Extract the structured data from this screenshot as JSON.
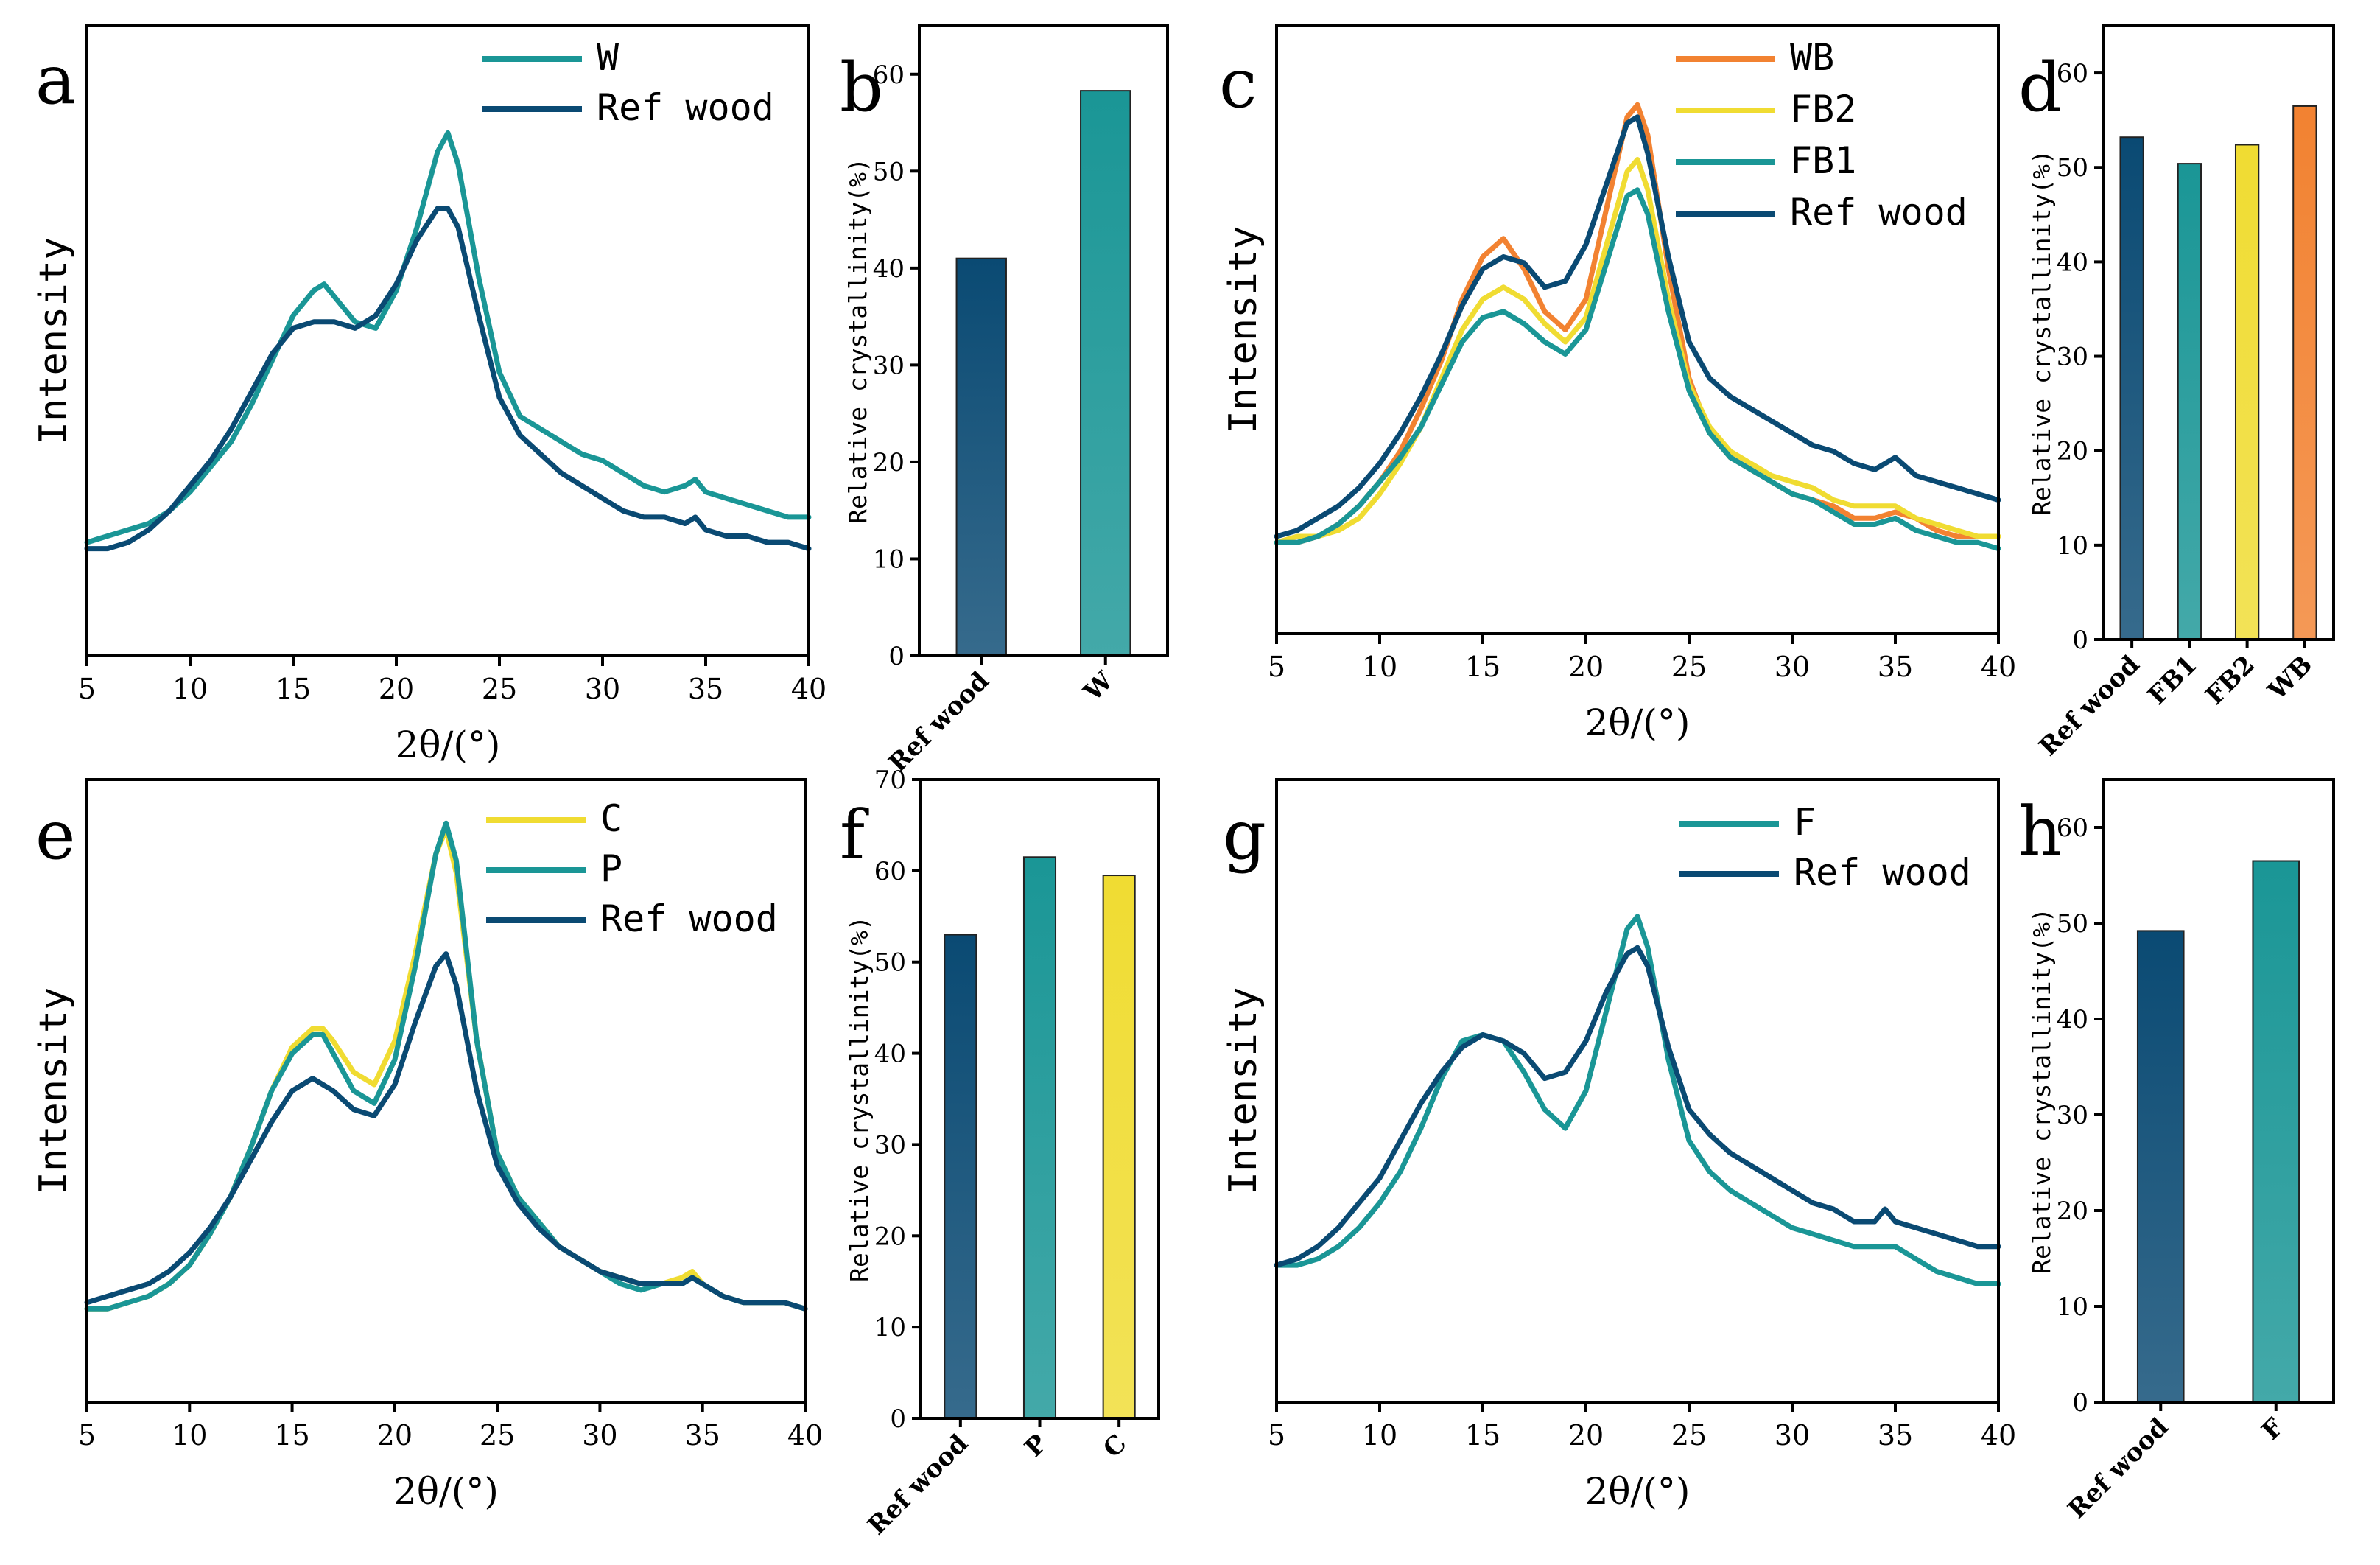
{
  "figure": {
    "background": "#ffffff"
  },
  "colors": {
    "ref": "#0a4a73",
    "W": "#1a9696",
    "F": "#1a9696",
    "P": "#1a9696",
    "FB1": "#1a9696",
    "FB2": "#f0dc32",
    "C": "#f0dc32",
    "WB": "#f28231"
  },
  "chart_data": [
    {
      "panel": "a",
      "type": "line",
      "xlabel": "2θ/(°)",
      "ylabel": "Intensity",
      "xlim": [
        5,
        40
      ],
      "ylim": [
        0,
        100
      ],
      "xticks": [
        5,
        10,
        15,
        20,
        25,
        30,
        35,
        40
      ],
      "series": [
        {
          "name": "W",
          "color": "#1a9696",
          "x": [
            5,
            6,
            7,
            8,
            9,
            10,
            11,
            12,
            13,
            14,
            15,
            16,
            16.5,
            17,
            18,
            19,
            20,
            21,
            22,
            22.5,
            23,
            24,
            25,
            26,
            27,
            28,
            29,
            30,
            31,
            32,
            33,
            34,
            34.5,
            35,
            36,
            37,
            38,
            39,
            40
          ],
          "y": [
            18,
            19,
            20,
            21,
            23,
            26,
            30,
            34,
            40,
            47,
            54,
            58,
            59,
            57,
            53,
            52,
            58,
            68,
            80,
            83,
            78,
            60,
            45,
            38,
            36,
            34,
            32,
            31,
            29,
            27,
            26,
            27,
            28,
            26,
            25,
            24,
            23,
            22,
            22
          ]
        },
        {
          "name": "Ref wood",
          "color": "#0a4a73",
          "x": [
            5,
            6,
            7,
            8,
            9,
            10,
            11,
            12,
            13,
            14,
            15,
            16,
            17,
            18,
            19,
            20,
            21,
            22,
            22.5,
            23,
            24,
            25,
            26,
            27,
            28,
            29,
            30,
            31,
            32,
            33,
            34,
            34.5,
            35,
            36,
            37,
            38,
            39,
            40
          ],
          "y": [
            17,
            17,
            18,
            20,
            23,
            27,
            31,
            36,
            42,
            48,
            52,
            53,
            53,
            52,
            54,
            59,
            66,
            71,
            71,
            68,
            54,
            41,
            35,
            32,
            29,
            27,
            25,
            23,
            22,
            22,
            21,
            22,
            20,
            19,
            19,
            18,
            18,
            17
          ]
        }
      ]
    },
    {
      "panel": "b",
      "type": "bar",
      "ylabel": "Relative crystallinity(%)",
      "ylim": [
        0,
        65
      ],
      "yticks": [
        0,
        10,
        20,
        30,
        40,
        50,
        60
      ],
      "categories": [
        "Ref wood",
        "W"
      ],
      "values": [
        41,
        58.3
      ],
      "colors": [
        "#0a4a73",
        "#1a9696"
      ]
    },
    {
      "panel": "c",
      "type": "line",
      "xlabel": "2θ/(°)",
      "ylabel": "Intensity",
      "xlim": [
        5,
        40
      ],
      "ylim": [
        0,
        100
      ],
      "xticks": [
        5,
        10,
        15,
        20,
        25,
        30,
        35,
        40
      ],
      "series": [
        {
          "name": "WB",
          "color": "#f28231",
          "x": [
            5,
            6,
            7,
            8,
            9,
            10,
            11,
            12,
            13,
            14,
            15,
            16,
            17,
            18,
            19,
            20,
            21,
            22,
            22.5,
            23,
            24,
            25,
            26,
            27,
            28,
            29,
            30,
            31,
            32,
            33,
            34,
            35,
            36,
            37,
            38,
            39,
            40
          ],
          "y": [
            15,
            15,
            16,
            18,
            21,
            25,
            30,
            37,
            45,
            55,
            62,
            65,
            60,
            53,
            50,
            55,
            70,
            85,
            87,
            82,
            60,
            42,
            33,
            29,
            27,
            25,
            23,
            22,
            21,
            19,
            19,
            20,
            19,
            17,
            16,
            16,
            16
          ]
        },
        {
          "name": "FB2",
          "color": "#f0dc32",
          "x": [
            5,
            6,
            7,
            8,
            9,
            10,
            11,
            12,
            13,
            14,
            15,
            16,
            17,
            18,
            19,
            20,
            21,
            22,
            22.5,
            23,
            24,
            25,
            26,
            27,
            28,
            29,
            30,
            31,
            32,
            33,
            34,
            35,
            36,
            37,
            38,
            39,
            40
          ],
          "y": [
            15,
            16,
            16,
            17,
            19,
            23,
            28,
            34,
            42,
            50,
            55,
            57,
            55,
            51,
            48,
            52,
            64,
            76,
            78,
            73,
            55,
            41,
            34,
            30,
            28,
            26,
            25,
            24,
            22,
            21,
            21,
            21,
            19,
            18,
            17,
            16,
            16
          ]
        },
        {
          "name": "FB1",
          "color": "#1a9696",
          "x": [
            5,
            6,
            7,
            8,
            9,
            10,
            11,
            12,
            13,
            14,
            15,
            16,
            17,
            18,
            19,
            20,
            21,
            22,
            22.5,
            23,
            24,
            25,
            26,
            27,
            28,
            29,
            30,
            31,
            32,
            33,
            34,
            35,
            36,
            37,
            38,
            39,
            40
          ],
          "y": [
            15,
            15,
            16,
            18,
            21,
            25,
            29,
            34,
            41,
            48,
            52,
            53,
            51,
            48,
            46,
            50,
            61,
            72,
            73,
            69,
            53,
            40,
            33,
            29,
            27,
            25,
            23,
            22,
            20,
            18,
            18,
            19,
            17,
            16,
            15,
            15,
            14
          ]
        },
        {
          "name": "Ref wood",
          "color": "#0a4a73",
          "x": [
            5,
            6,
            7,
            8,
            9,
            10,
            11,
            12,
            13,
            14,
            15,
            16,
            17,
            18,
            19,
            20,
            21,
            22,
            22.5,
            23,
            24,
            25,
            26,
            27,
            28,
            29,
            30,
            31,
            32,
            33,
            34,
            35,
            36,
            37,
            38,
            39,
            40
          ],
          "y": [
            16,
            17,
            19,
            21,
            24,
            28,
            33,
            39,
            46,
            54,
            60,
            62,
            61,
            57,
            58,
            64,
            74,
            84,
            85,
            79,
            62,
            48,
            42,
            39,
            37,
            35,
            33,
            31,
            30,
            28,
            27,
            29,
            26,
            25,
            24,
            23,
            22
          ]
        }
      ]
    },
    {
      "panel": "d",
      "type": "bar",
      "ylabel": "Relative crystallinity(%)",
      "ylim": [
        0,
        65
      ],
      "yticks": [
        0,
        10,
        20,
        30,
        40,
        50,
        60
      ],
      "categories": [
        "Ref wood",
        "FB1",
        "FB2",
        "WB"
      ],
      "values": [
        53.2,
        50.4,
        52.4,
        56.5
      ],
      "colors": [
        "#0a4a73",
        "#1a9696",
        "#f0dc32",
        "#f28231"
      ]
    },
    {
      "panel": "e",
      "type": "line",
      "xlabel": "2θ/(°)",
      "ylabel": "Intensity",
      "xlim": [
        5,
        40
      ],
      "ylim": [
        0,
        100
      ],
      "xticks": [
        5,
        10,
        15,
        20,
        25,
        30,
        35,
        40
      ],
      "series": [
        {
          "name": "C",
          "color": "#f0dc32",
          "x": [
            5,
            6,
            7,
            8,
            9,
            10,
            11,
            12,
            13,
            14,
            15,
            16,
            16.5,
            17,
            18,
            19,
            20,
            21,
            22,
            22.5,
            23,
            24,
            25,
            26,
            27,
            28,
            29,
            30,
            31,
            32,
            33,
            34,
            34.5,
            35,
            36,
            37,
            38,
            39,
            40
          ],
          "y": [
            15,
            15,
            16,
            17,
            19,
            22,
            27,
            33,
            41,
            50,
            57,
            60,
            60,
            58,
            53,
            51,
            58,
            72,
            88,
            92,
            85,
            58,
            40,
            33,
            29,
            25,
            23,
            21,
            20,
            19,
            19,
            20,
            21,
            19,
            17,
            16,
            16,
            16,
            15
          ]
        },
        {
          "name": "P",
          "color": "#1a9696",
          "x": [
            5,
            6,
            7,
            8,
            9,
            10,
            11,
            12,
            13,
            14,
            15,
            16,
            16.5,
            17,
            18,
            19,
            20,
            21,
            22,
            22.5,
            23,
            24,
            25,
            26,
            27,
            28,
            29,
            30,
            31,
            32,
            33,
            34,
            34.5,
            35,
            36,
            37,
            38,
            39,
            40
          ],
          "y": [
            15,
            15,
            16,
            17,
            19,
            22,
            27,
            33,
            41,
            50,
            56,
            59,
            59,
            56,
            50,
            48,
            55,
            70,
            88,
            93,
            87,
            58,
            40,
            33,
            29,
            25,
            23,
            21,
            19,
            18,
            19,
            19,
            20,
            19,
            17,
            16,
            16,
            16,
            15
          ]
        },
        {
          "name": "Ref wood",
          "color": "#0a4a73",
          "x": [
            5,
            6,
            7,
            8,
            9,
            10,
            11,
            12,
            13,
            14,
            15,
            16,
            17,
            18,
            19,
            20,
            21,
            22,
            22.5,
            23,
            24,
            25,
            26,
            27,
            28,
            29,
            30,
            31,
            32,
            33,
            34,
            34.5,
            35,
            36,
            37,
            38,
            39,
            40
          ],
          "y": [
            16,
            17,
            18,
            19,
            21,
            24,
            28,
            33,
            39,
            45,
            50,
            52,
            50,
            47,
            46,
            51,
            61,
            70,
            72,
            67,
            50,
            38,
            32,
            28,
            25,
            23,
            21,
            20,
            19,
            19,
            19,
            20,
            19,
            17,
            16,
            16,
            16,
            15
          ]
        }
      ]
    },
    {
      "panel": "f",
      "type": "bar",
      "ylabel": "Relative crystallinity(%)",
      "ylim": [
        0,
        70
      ],
      "yticks": [
        0,
        10,
        20,
        30,
        40,
        50,
        60,
        70
      ],
      "categories": [
        "Ref wood",
        "P",
        "C"
      ],
      "values": [
        53,
        61.5,
        59.5
      ],
      "colors": [
        "#0a4a73",
        "#1a9696",
        "#f0dc32"
      ]
    },
    {
      "panel": "g",
      "type": "line",
      "xlabel": "2θ/(°)",
      "ylabel": "Intensity",
      "xlim": [
        5,
        40
      ],
      "ylim": [
        0,
        100
      ],
      "xticks": [
        5,
        10,
        15,
        20,
        25,
        30,
        35,
        40
      ],
      "series": [
        {
          "name": "F",
          "color": "#1a9696",
          "x": [
            5,
            6,
            7,
            8,
            9,
            10,
            11,
            12,
            13,
            14,
            15,
            16,
            17,
            18,
            19,
            20,
            21,
            22,
            22.5,
            23,
            24,
            25,
            26,
            27,
            28,
            29,
            30,
            31,
            32,
            33,
            34,
            35,
            36,
            37,
            38,
            39,
            40
          ],
          "y": [
            22,
            22,
            23,
            25,
            28,
            32,
            37,
            44,
            52,
            58,
            59,
            58,
            53,
            47,
            44,
            50,
            63,
            76,
            78,
            73,
            55,
            42,
            37,
            34,
            32,
            30,
            28,
            27,
            26,
            25,
            25,
            25,
            23,
            21,
            20,
            19,
            19
          ]
        },
        {
          "name": "Ref wood",
          "color": "#0a4a73",
          "x": [
            5,
            6,
            7,
            8,
            9,
            10,
            11,
            12,
            13,
            14,
            15,
            16,
            17,
            18,
            19,
            20,
            21,
            22,
            22.5,
            23,
            24,
            25,
            26,
            27,
            28,
            29,
            30,
            31,
            32,
            33,
            34,
            34.5,
            35,
            36,
            37,
            38,
            39,
            40
          ],
          "y": [
            22,
            23,
            25,
            28,
            32,
            36,
            42,
            48,
            53,
            57,
            59,
            58,
            56,
            52,
            53,
            58,
            66,
            72,
            73,
            70,
            57,
            47,
            43,
            40,
            38,
            36,
            34,
            32,
            31,
            29,
            29,
            31,
            29,
            28,
            27,
            26,
            25,
            25
          ]
        }
      ]
    },
    {
      "panel": "h",
      "type": "bar",
      "ylabel": "Relative crystallinity(%)",
      "ylim": [
        0,
        65
      ],
      "yticks": [
        0,
        10,
        20,
        30,
        40,
        50,
        60
      ],
      "categories": [
        "Ref wood",
        "F"
      ],
      "values": [
        49.2,
        56.5
      ],
      "colors": [
        "#0a4a73",
        "#1a9696"
      ]
    }
  ]
}
